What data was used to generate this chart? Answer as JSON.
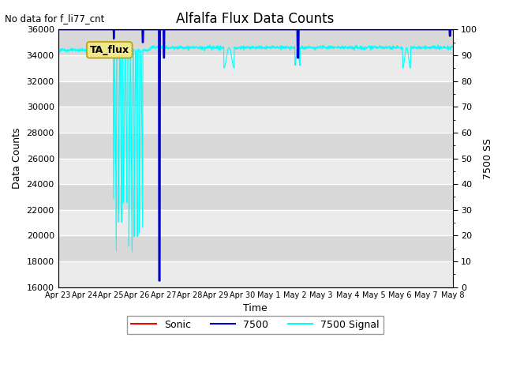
{
  "title": "Alfalfa Flux Data Counts",
  "no_data_label": "No data for f_li77_cnt",
  "ylabel_left": "Data Counts",
  "ylabel_right": "7500 SS",
  "xlabel": "Time",
  "ylim_left": [
    16000,
    36000
  ],
  "ylim_right": [
    0,
    100
  ],
  "yticks_left": [
    16000,
    18000,
    20000,
    22000,
    24000,
    26000,
    28000,
    30000,
    32000,
    34000,
    36000
  ],
  "yticks_right": [
    0,
    10,
    20,
    30,
    40,
    50,
    60,
    70,
    80,
    90,
    100
  ],
  "xtick_labels": [
    "Apr 23",
    "Apr 24",
    "Apr 25",
    "Apr 26",
    "Apr 27",
    "Apr 28",
    "Apr 29",
    "Apr 30",
    "May 1",
    "May 2",
    "May 3",
    "May 4",
    "May 5",
    "May 6",
    "May 7",
    "May 8"
  ],
  "bg_color": "#e0e0e0",
  "bg_stripe_light": "#ebebeb",
  "bg_stripe_dark": "#d8d8d8",
  "line_cyan_color": "cyan",
  "line_blue_color": "#0000cc",
  "line_red_color": "red",
  "ta_flux_box_text": "TA_flux",
  "ta_flux_box_color": "#f0e68c",
  "ta_flux_box_edge": "#b8a000",
  "annotation_color": "#c8b400",
  "figsize": [
    6.4,
    4.8
  ],
  "dpi": 100
}
